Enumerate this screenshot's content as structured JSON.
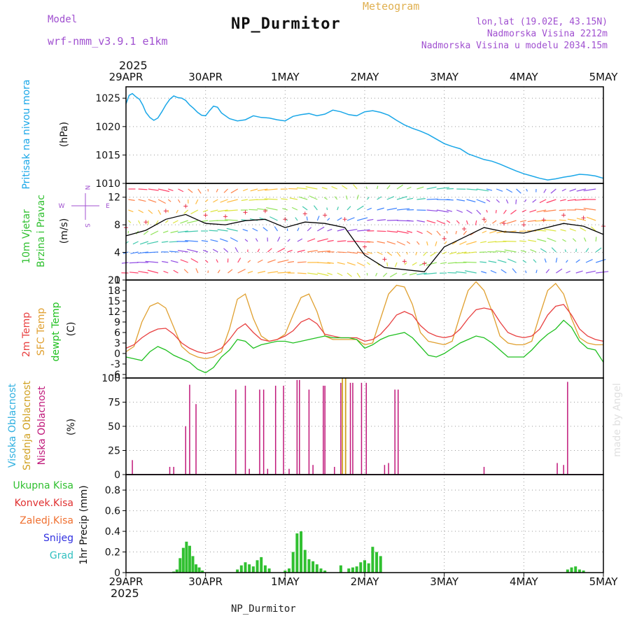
{
  "header": {
    "model_label": "Model",
    "model_value": "wrf-nmm_v3.9.1 e1km",
    "title": "NP_Durmitor",
    "subtitle": "Meteogram",
    "lonlat": "lon,lat (19.02E, 43.15N)",
    "elevation": "Nadmorska Visina 2212m",
    "elevation_model": "Nadmorska Visina u modelu 2034.15m",
    "footer": "NP_Durmitor",
    "credit": "made by Angel"
  },
  "x_axis": {
    "year": "2025",
    "ticks": [
      "29APR",
      "30APR",
      "1MAY",
      "2MAY",
      "3MAY",
      "4MAY",
      "5MAY"
    ]
  },
  "panel_labels": {
    "pressure": {
      "name": "Pritisak na nivou mora",
      "unit": "(hPa)"
    },
    "wind": {
      "name1": "10m Vjetar",
      "name2": "Brzina i Pravac",
      "unit": "(m/s)"
    },
    "temp": {
      "t2": "2m Temp",
      "sfc": "SFC Temp",
      "dew": "dewpt Temp",
      "unit": "(C)"
    },
    "cloud": {
      "high": "Visoka Oblacnost",
      "mid": "Srednja Oblacnost",
      "low": "Niska Oblacnost",
      "unit": "(%)"
    },
    "precip": {
      "unit": "1hr Precip (mm)",
      "legend": [
        "Ukupna Kisa",
        "Konvek.Kisa",
        "Zaledj.Kisa",
        "Snijeg",
        "Grad"
      ]
    }
  },
  "compass": {
    "n": "N",
    "s": "S",
    "e": "E",
    "w": "W"
  },
  "colors": {
    "pressure": "#1aa7e8",
    "wind_speed": "#000000",
    "gust": "#e8344a",
    "t2": "#e84040",
    "sfc": "#e0a030",
    "dew": "#20c020",
    "cloud_high": "#30b0e0",
    "cloud_mid": "#d0a020",
    "cloud_low": "#c0187a",
    "precip_total": "#30c030",
    "legend_total": "#30c030",
    "legend_conv": "#e03030",
    "legend_frz": "#f07030",
    "legend_snow": "#3030e0",
    "legend_grad": "#30c0c0"
  },
  "chart_data": [
    {
      "type": "line",
      "name": "pressure",
      "ylim": [
        1010,
        1027
      ],
      "yticks": [
        1010,
        1015,
        1020,
        1025
      ],
      "x_days": [
        0,
        0.04,
        0.08,
        0.12,
        0.17,
        0.21,
        0.25,
        0.3,
        0.35,
        0.4,
        0.45,
        0.5,
        0.55,
        0.6,
        0.65,
        0.7,
        0.75,
        0.8,
        0.85,
        0.9,
        0.95,
        1.0,
        1.05,
        1.1,
        1.15,
        1.2,
        1.3,
        1.4,
        1.5,
        1.6,
        1.7,
        1.8,
        1.9,
        2.0,
        2.1,
        2.2,
        2.3,
        2.4,
        2.5,
        2.6,
        2.7,
        2.8,
        2.9,
        3.0,
        3.1,
        3.2,
        3.3,
        3.4,
        3.5,
        3.6,
        3.7,
        3.8,
        3.9,
        4.0,
        4.1,
        4.2,
        4.3,
        4.4,
        4.5,
        4.6,
        4.7,
        4.8,
        4.9,
        5.0,
        5.1,
        5.2,
        5.3,
        5.4,
        5.5,
        5.6,
        5.7,
        5.8,
        5.9,
        6.0
      ],
      "values": [
        1024,
        1025.5,
        1025.8,
        1025.3,
        1024.8,
        1023.8,
        1022.5,
        1021.6,
        1021.1,
        1021.5,
        1022.6,
        1023.8,
        1024.8,
        1025.4,
        1025.1,
        1025.0,
        1024.6,
        1023.8,
        1023.2,
        1022.5,
        1022.0,
        1021.9,
        1022.8,
        1023.6,
        1023.4,
        1022.4,
        1021.4,
        1021.0,
        1021.2,
        1021.9,
        1021.6,
        1021.5,
        1021.2,
        1021.0,
        1021.8,
        1022.1,
        1022.3,
        1021.9,
        1022.2,
        1022.9,
        1022.6,
        1022.1,
        1021.9,
        1022.6,
        1022.8,
        1022.5,
        1022.0,
        1021.1,
        1020.3,
        1019.7,
        1019.2,
        1018.6,
        1017.8,
        1017.0,
        1016.5,
        1016.1,
        1015.2,
        1014.7,
        1014.2,
        1013.9,
        1013.4,
        1012.8,
        1012.2,
        1011.7,
        1011.3,
        1010.9,
        1010.6,
        1010.8,
        1011.1,
        1011.3,
        1011.6,
        1011.5,
        1011.3,
        1010.9
      ]
    },
    {
      "type": "line",
      "name": "wind_speed",
      "ylim": [
        0,
        14
      ],
      "yticks": [
        0,
        4,
        8,
        12
      ],
      "x_days": [
        0,
        0.25,
        0.5,
        0.75,
        1.0,
        1.25,
        1.5,
        1.75,
        2.0,
        2.25,
        2.5,
        2.75,
        3.0,
        3.25,
        3.5,
        3.75,
        4.0,
        4.25,
        4.5,
        4.75,
        5.0,
        5.25,
        5.5,
        5.75,
        6.0
      ],
      "values": [
        6.4,
        7.2,
        8.8,
        9.5,
        8.2,
        8.0,
        8.6,
        8.8,
        7.6,
        8.4,
        8.2,
        7.6,
        3.6,
        1.8,
        1.5,
        1.2,
        4.8,
        6.2,
        7.6,
        7.0,
        6.8,
        7.5,
        8.2,
        7.8,
        6.6
      ]
    },
    {
      "type": "line",
      "name": "temperature",
      "ylim": [
        -7,
        21
      ],
      "yticks": [
        -6,
        -3,
        0,
        3,
        6,
        9,
        12,
        15,
        18,
        21
      ],
      "x_days": [
        0,
        0.1,
        0.2,
        0.3,
        0.4,
        0.5,
        0.6,
        0.7,
        0.8,
        0.9,
        1.0,
        1.1,
        1.2,
        1.3,
        1.4,
        1.5,
        1.6,
        1.7,
        1.8,
        1.9,
        2.0,
        2.1,
        2.2,
        2.3,
        2.4,
        2.5,
        2.6,
        2.7,
        2.8,
        2.9,
        3.0,
        3.1,
        3.2,
        3.3,
        3.4,
        3.5,
        3.6,
        3.7,
        3.8,
        3.9,
        4.0,
        4.1,
        4.2,
        4.3,
        4.4,
        4.5,
        4.6,
        4.7,
        4.8,
        4.9,
        5.0,
        5.1,
        5.2,
        5.3,
        5.4,
        5.5,
        5.6,
        5.7,
        5.8,
        5.9,
        6.0
      ],
      "t2": [
        1.5,
        2.5,
        4.5,
        6.0,
        7.0,
        7.2,
        5.5,
        3.0,
        1.5,
        0.5,
        0.0,
        0.5,
        1.5,
        4.0,
        7.0,
        8.5,
        6.0,
        4.0,
        3.5,
        4.0,
        5.0,
        6.5,
        9.0,
        10.0,
        8.5,
        5.5,
        5.0,
        4.5,
        4.5,
        4.5,
        3.5,
        4.0,
        5.5,
        8.0,
        11.0,
        12.0,
        11.0,
        8.0,
        6.0,
        5.0,
        4.5,
        5.0,
        7.0,
        10.0,
        12.5,
        13.0,
        12.5,
        9.0,
        6.0,
        5.0,
        4.5,
        5.0,
        7.0,
        11.0,
        13.5,
        14.0,
        11.0,
        7.0,
        5.0,
        4.0,
        3.5
      ],
      "sfc": [
        0.5,
        2.0,
        9.0,
        13.5,
        14.5,
        13.0,
        7.5,
        2.0,
        0.0,
        -1.0,
        -1.5,
        -1.0,
        0.5,
        7.0,
        15.5,
        17.0,
        10.0,
        5.0,
        3.5,
        4.0,
        5.5,
        11.0,
        16.0,
        17.0,
        12.0,
        5.0,
        4.0,
        4.0,
        4.0,
        4.0,
        2.5,
        3.0,
        10.0,
        17.0,
        19.5,
        19.0,
        14.0,
        6.0,
        3.5,
        3.0,
        2.5,
        3.5,
        11.0,
        18.0,
        20.5,
        18.0,
        12.0,
        5.0,
        3.0,
        2.5,
        2.5,
        3.5,
        11.0,
        18.0,
        20.0,
        17.0,
        10.0,
        4.5,
        3.0,
        2.5,
        2.5
      ],
      "dew": [
        -1.0,
        -1.5,
        -2.0,
        0.5,
        2.0,
        1.0,
        -0.5,
        -1.5,
        -2.5,
        -4.5,
        -5.5,
        -4.0,
        -1.0,
        1.0,
        4.0,
        3.5,
        1.5,
        2.5,
        3.0,
        3.5,
        3.5,
        3.0,
        3.5,
        4.0,
        4.5,
        5.0,
        4.5,
        4.5,
        4.5,
        4.0,
        1.5,
        2.5,
        4.0,
        5.0,
        5.5,
        6.0,
        4.5,
        2.0,
        -0.5,
        -1.0,
        0.0,
        1.5,
        3.0,
        4.0,
        5.0,
        4.5,
        3.0,
        1.0,
        -1.0,
        -1.0,
        -1.0,
        1.0,
        3.5,
        5.5,
        7.0,
        9.5,
        7.5,
        3.5,
        1.5,
        1.0,
        -2.5
      ]
    },
    {
      "type": "bar",
      "name": "cloud_cover",
      "ylim": [
        0,
        100
      ],
      "yticks": [
        0,
        25,
        50,
        75,
        100
      ],
      "low_x_days": [
        0.08,
        0.55,
        0.6,
        0.75,
        0.8,
        0.88,
        1.38,
        1.5,
        1.55,
        1.68,
        1.73,
        1.78,
        1.88,
        1.98,
        2.05,
        2.15,
        2.18,
        2.3,
        2.35,
        2.48,
        2.5,
        2.62,
        2.7,
        2.82,
        2.85,
        2.96,
        3.02,
        3.25,
        3.3,
        3.38,
        3.42,
        4.5,
        5.42,
        5.5,
        5.55
      ],
      "low_values": [
        15,
        8,
        8,
        50,
        93,
        73,
        88,
        92,
        6,
        88,
        88,
        6,
        92,
        92,
        6,
        98,
        98,
        88,
        10,
        92,
        92,
        8,
        95,
        95,
        95,
        95,
        95,
        10,
        12,
        88,
        88,
        8,
        12,
        10,
        96
      ],
      "mid_x_days": [
        2.72,
        2.76
      ],
      "mid_values": [
        100,
        100
      ]
    },
    {
      "type": "bar",
      "name": "precip_total",
      "ylim": [
        0,
        0.95
      ],
      "yticks": [
        0,
        0.2,
        0.4,
        0.6,
        0.8
      ],
      "x_days": [
        0.6,
        0.64,
        0.68,
        0.72,
        0.76,
        0.8,
        0.84,
        0.88,
        0.92,
        0.96,
        1.4,
        1.45,
        1.5,
        1.55,
        1.6,
        1.65,
        1.7,
        1.75,
        1.8,
        2.0,
        2.05,
        2.1,
        2.15,
        2.2,
        2.25,
        2.3,
        2.35,
        2.4,
        2.45,
        2.5,
        2.7,
        2.8,
        2.85,
        2.9,
        2.95,
        3.0,
        3.05,
        3.1,
        3.15,
        3.2,
        5.55,
        5.6,
        5.65,
        5.7,
        5.75
      ],
      "values": [
        0.01,
        0.03,
        0.14,
        0.24,
        0.3,
        0.26,
        0.16,
        0.08,
        0.05,
        0.02,
        0.03,
        0.07,
        0.1,
        0.08,
        0.06,
        0.12,
        0.15,
        0.07,
        0.04,
        0.02,
        0.04,
        0.2,
        0.38,
        0.4,
        0.22,
        0.13,
        0.11,
        0.08,
        0.04,
        0.02,
        0.07,
        0.04,
        0.05,
        0.06,
        0.1,
        0.12,
        0.09,
        0.25,
        0.2,
        0.16,
        0.03,
        0.05,
        0.06,
        0.03,
        0.02
      ]
    }
  ]
}
